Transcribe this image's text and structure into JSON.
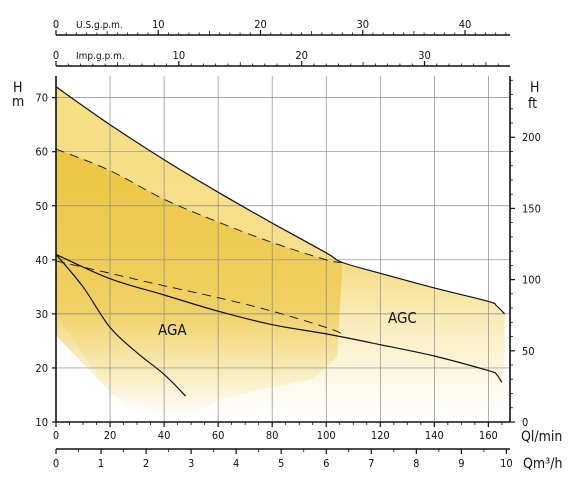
{
  "chart_data": {
    "type": "area",
    "title": "",
    "x": {
      "label": "Ql/min",
      "ticks": [
        0,
        20,
        40,
        60,
        80,
        100,
        120,
        140,
        160
      ],
      "range": [
        0,
        168
      ]
    },
    "x_secondary": {
      "label": "Qm³/h",
      "ticks": [
        0,
        1,
        2,
        3,
        4,
        5,
        6,
        7,
        8,
        9,
        10
      ],
      "range": [
        0,
        10.08
      ]
    },
    "x_top_us": {
      "label": "U.S.g.p.m.",
      "ticks": [
        0,
        10,
        20,
        30,
        40
      ],
      "range": [
        0,
        44.4
      ]
    },
    "x_top_imp": {
      "label": "Imp.g.p.m.",
      "ticks": [
        0,
        10,
        20,
        30
      ],
      "range": [
        0,
        36.96
      ]
    },
    "y_left": {
      "label_top": "H",
      "label_unit": "m",
      "ticks": [
        10,
        20,
        30,
        40,
        50,
        60,
        70
      ],
      "range": [
        10,
        74
      ]
    },
    "y_right": {
      "label_top": "H",
      "label_unit": "ft",
      "ticks": [
        0,
        50,
        100,
        150,
        200
      ],
      "range": [
        0,
        243
      ]
    },
    "grid": true,
    "series": [
      {
        "name": "AGC",
        "max_curve": [
          [
            0,
            72
          ],
          [
            20,
            65
          ],
          [
            40,
            58.5
          ],
          [
            60,
            52.5
          ],
          [
            80,
            46.8
          ],
          [
            100,
            41.3
          ],
          [
            106,
            39.5
          ],
          [
            120,
            37.5
          ],
          [
            140,
            34.8
          ],
          [
            160,
            32.3
          ],
          [
            163,
            31.5
          ],
          [
            166,
            30
          ]
        ],
        "min_curve": [
          [
            0,
            41
          ],
          [
            20,
            36.5
          ],
          [
            40,
            33.5
          ],
          [
            60,
            30.5
          ],
          [
            80,
            28
          ],
          [
            100,
            26.3
          ],
          [
            120,
            24.3
          ],
          [
            140,
            22.2
          ],
          [
            160,
            19.5
          ],
          [
            163,
            18.8
          ],
          [
            165,
            17.3
          ]
        ],
        "dashed_curve": [
          [
            0,
            60.5
          ],
          [
            20,
            56.5
          ],
          [
            40,
            51.2
          ],
          [
            60,
            47
          ],
          [
            80,
            43.2
          ],
          [
            100,
            40
          ],
          [
            106,
            39.5
          ]
        ],
        "color": "#f5dc7e",
        "label": "AGC"
      },
      {
        "name": "AGA",
        "max_curve": [
          [
            0,
            60.5
          ],
          [
            20,
            56.5
          ],
          [
            40,
            51.2
          ],
          [
            60,
            47
          ],
          [
            80,
            43.2
          ],
          [
            100,
            40
          ],
          [
            106,
            39.5
          ]
        ],
        "min_curve": [
          [
            0,
            41
          ],
          [
            10,
            35
          ],
          [
            20,
            27.5
          ],
          [
            30,
            22.8
          ],
          [
            40,
            18.8
          ],
          [
            48,
            14.8
          ]
        ],
        "dashed_curve": [
          [
            0,
            39.8
          ],
          [
            20,
            37.5
          ],
          [
            40,
            35.2
          ],
          [
            60,
            33
          ],
          [
            80,
            30.5
          ],
          [
            100,
            27.5
          ],
          [
            106,
            26.3
          ]
        ],
        "color": "#ecc640",
        "label": "AGA"
      }
    ]
  }
}
